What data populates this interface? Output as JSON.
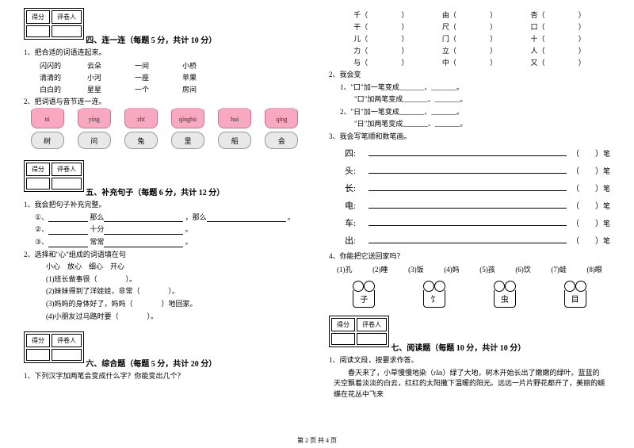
{
  "scorebox": {
    "score": "得分",
    "grader": "评卷人"
  },
  "sec4": {
    "title": "四、连一连（每题 5 分，共计 10 分）",
    "q1": "1、把合适的词语连起来。",
    "rows": [
      [
        "闪闪的",
        "云朵",
        "一间",
        "小桥"
      ],
      [
        "清清的",
        "小河",
        "一座",
        "苹果"
      ],
      [
        "白白的",
        "星星",
        "一个",
        "房间"
      ]
    ],
    "q2": "2、把词语与音节连一连。",
    "pinyin": [
      "tú",
      "yíng",
      "zhī",
      "qíngbù",
      "huì",
      "qíng"
    ],
    "chars": [
      "树",
      "问",
      "兔",
      "里",
      "船",
      "会"
    ]
  },
  "sec5": {
    "title": "五、补充句子（每题 6 分，共计 12 分）",
    "q1": "1、我会把句子补充完整。",
    "lines": [
      {
        "pre": "①、",
        "mid": "那么",
        "mid2": "，那么",
        "end": "。"
      },
      {
        "pre": "②、",
        "mid": "十分",
        "end": "。"
      },
      {
        "pre": "③、",
        "mid": "常常",
        "end": "。"
      }
    ],
    "q2": "2、选择和\"心\"组成的词语填在句",
    "options": "小心　放心　细心　开心",
    "subs": [
      "(1)班长做事很（　　　　）。",
      "(2)妹妹得到了洋娃娃，非常（　　　　）。",
      "(3)妈妈的身体好了，妈妈（　　　　）地回家。",
      "(4)小朋友过马路时要（　　　　）。"
    ]
  },
  "sec6": {
    "title": "六、综合题（每题 5 分，共计 20 分）",
    "q1": "1、下列汉字加两笔会变成什么字？你能变出几个？"
  },
  "char_grid": [
    [
      "千（",
      "）",
      "由（",
      "）",
      "杏（",
      "）"
    ],
    [
      "干（",
      "）",
      "尺（",
      "）",
      "口（",
      "）"
    ],
    [
      "儿（",
      "）",
      "门（",
      "）",
      "十（",
      "）"
    ],
    [
      "力（",
      "）",
      "立（",
      "）",
      "人（",
      "）"
    ],
    [
      "与（",
      "）",
      "中（",
      "）",
      "又（",
      "）"
    ]
  ],
  "q2_title": "2、我会变",
  "q2_lines": [
    "1、\"口\"加一笔变成_______、_______。",
    "　　\"口\"加两笔变成_______、_______。",
    "2、\"日\"加一笔变成_______、_______。",
    "　　\"日\"加两笔变成_______、_______。"
  ],
  "q3_title": "3、我会写笔顺和数笔画。",
  "stroke_chars": [
    "四:",
    "头:",
    "长:",
    "电:",
    "车:",
    "出:"
  ],
  "stroke_unit": "笔",
  "q4": "4、你能把它送回家吗？",
  "q4_options": [
    "(1)孔",
    "(2)睡",
    "(3)饭",
    "(4)妈",
    "(5)孩",
    "(6)饮",
    "(7)蛙",
    "(8)眼"
  ],
  "mushrooms": [
    "子",
    "饣",
    "虫",
    "目"
  ],
  "sec7": {
    "title": "七、阅读题（每题 10 分，共计 10 分）",
    "q1": "1、阅读文段，按要求作答。",
    "passage": "春天来了，小草慢慢地染（rǎn）绿了大地，树木开始长出了嫩嫩的绿叶。蓝蓝的天空飘着淡淡的白云，红红的太阳撒下温暖的阳光。远远一片片野花都开了，美丽的蝴蝶在花丛中飞来"
  },
  "footer": "第 2 页 共 4 页"
}
